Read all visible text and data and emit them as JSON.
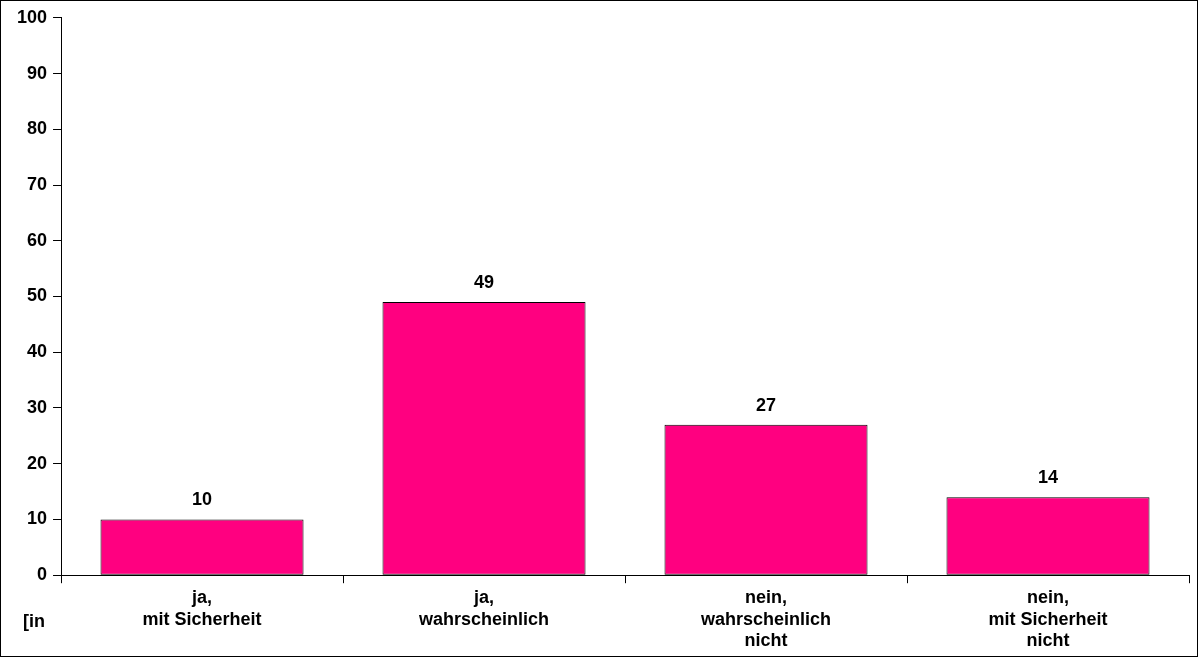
{
  "chart_data": {
    "type": "bar",
    "categories": [
      "ja,\nmit Sicherheit",
      "ja,\nwahrscheinlich",
      "nein,\nwahrscheinlich\nnicht",
      "nein,\nmit Sicherheit\nnicht"
    ],
    "values": [
      10,
      49,
      27,
      14
    ],
    "color": "#ff0080",
    "ylim": [
      0,
      100
    ],
    "yticks": [
      0,
      10,
      20,
      30,
      40,
      50,
      60,
      70,
      80,
      90,
      100
    ],
    "grid": false,
    "legend": false,
    "data_labels": true,
    "annotations": [
      "[in"
    ]
  }
}
